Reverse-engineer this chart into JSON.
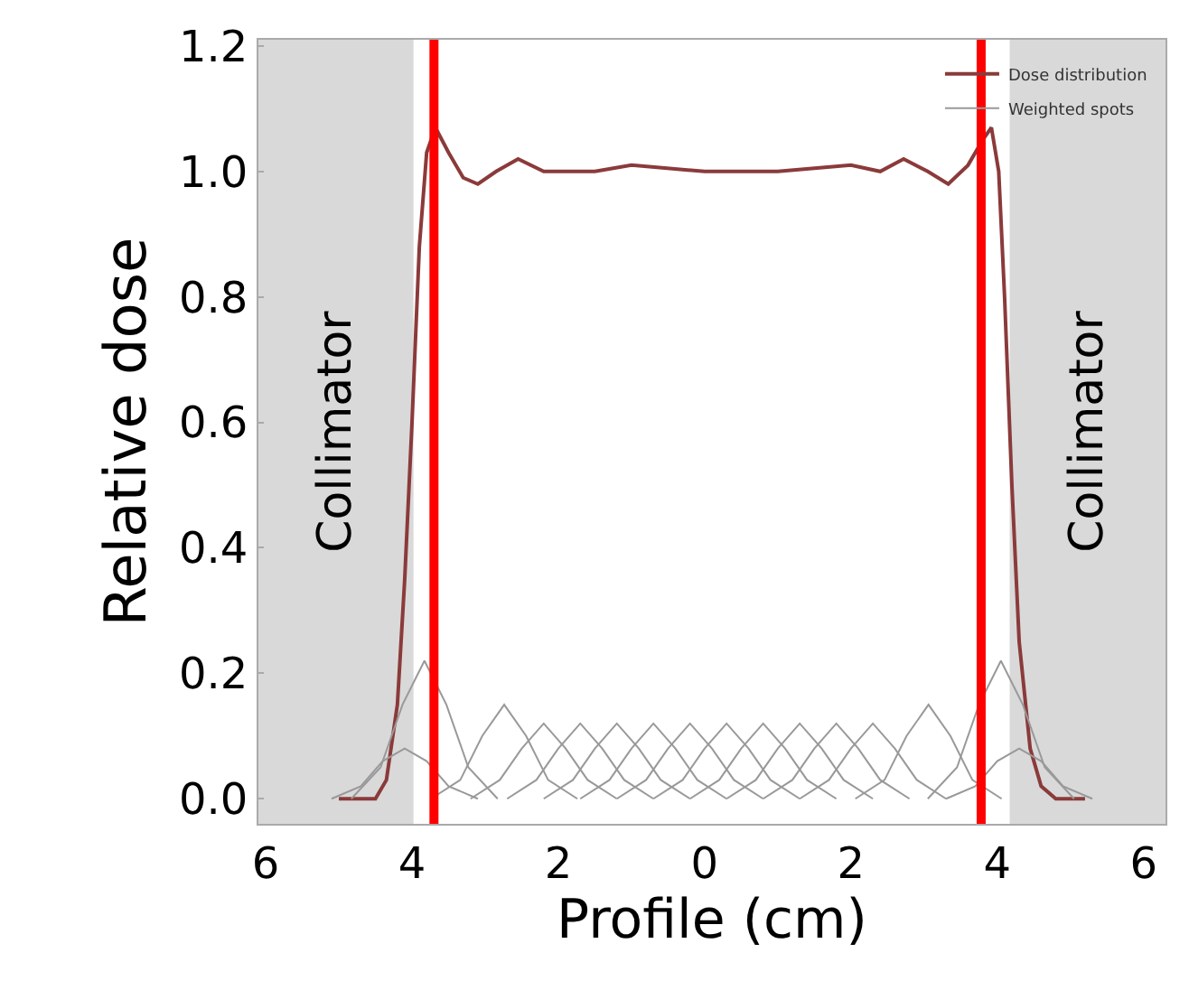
{
  "chart_data": {
    "type": "line",
    "xlabel": "Profile (cm)",
    "ylabel": "Relative dose",
    "xlim": [
      -6.1,
      6.3
    ],
    "ylim": [
      -0.04,
      1.21
    ],
    "xticks": [
      {
        "value": -6,
        "label": "6"
      },
      {
        "value": -4,
        "label": "4"
      },
      {
        "value": -2,
        "label": "2"
      },
      {
        "value": 0,
        "label": "0"
      },
      {
        "value": 2,
        "label": "2"
      },
      {
        "value": 4,
        "label": "4"
      },
      {
        "value": 6,
        "label": "6"
      }
    ],
    "yticks": [
      {
        "value": 0,
        "label": "0.0"
      },
      {
        "value": 0.2,
        "label": "0.2"
      },
      {
        "value": 0.4,
        "label": "0.4"
      },
      {
        "value": 0.6,
        "label": "0.6"
      },
      {
        "value": 0.8,
        "label": "0.8"
      },
      {
        "value": 1.0,
        "label": "1.0"
      },
      {
        "value": 1.2,
        "label": "1.2"
      }
    ],
    "grid": false,
    "legend": "top right",
    "bands": [
      {
        "axis": "x",
        "from": -6.1,
        "to": -3.98,
        "label": "Collimator",
        "color": "#d9d9d9"
      },
      {
        "axis": "x",
        "from": 4.17,
        "to": 6.3,
        "label": "Collimator",
        "color": "#d9d9d9"
      }
    ],
    "ref_lines": [
      {
        "axis": "x",
        "value": -3.7,
        "color": "#ff0000"
      },
      {
        "axis": "x",
        "value": 3.78,
        "color": "#ff0000"
      }
    ],
    "series": [
      {
        "name": "Dose distribution",
        "color": "#8b3a3a",
        "x": [
          -5.0,
          -4.5,
          -4.35,
          -4.2,
          -4.1,
          -4.0,
          -3.9,
          -3.8,
          -3.68,
          -3.5,
          -3.3,
          -3.1,
          -2.85,
          -2.55,
          -2.2,
          -1.5,
          -1.0,
          0,
          1.0,
          2.0,
          2.4,
          2.72,
          3.05,
          3.33,
          3.6,
          3.8,
          3.92,
          4.02,
          4.1,
          4.2,
          4.3,
          4.45,
          4.6,
          4.8,
          5.2
        ],
        "values": [
          0,
          0,
          0.03,
          0.15,
          0.35,
          0.6,
          0.88,
          1.03,
          1.07,
          1.03,
          0.99,
          0.98,
          1.0,
          1.02,
          1.0,
          1.0,
          1.01,
          1.0,
          1.0,
          1.01,
          1.0,
          1.02,
          1.0,
          0.98,
          1.01,
          1.05,
          1.07,
          1.0,
          0.8,
          0.5,
          0.25,
          0.08,
          0.02,
          0,
          0
        ]
      },
      {
        "name": "Weighted spots",
        "color": "#999999",
        "x": [
          -5.1,
          -4.7,
          -4.4,
          -4.1,
          -3.8,
          -3.5,
          -3.1
        ],
        "values": [
          0,
          0.02,
          0.06,
          0.08,
          0.06,
          0.02,
          0
        ]
      },
      {
        "color": "#999999",
        "x": [
          -4.83,
          -4.43,
          -4.13,
          -3.83,
          -3.53,
          -3.23,
          -2.83
        ],
        "values": [
          0,
          0.05,
          0.15,
          0.22,
          0.15,
          0.05,
          0
        ]
      },
      {
        "color": "#999999",
        "x": [
          -3.74,
          -3.34,
          -3.04,
          -2.74,
          -2.44,
          -2.14,
          -1.74
        ],
        "values": [
          0,
          0.03,
          0.1,
          0.15,
          0.1,
          0.03,
          0
        ]
      },
      {
        "color": "#999999",
        "x": [
          -3.2,
          -2.8,
          -2.5,
          -2.2,
          -1.9,
          -1.6,
          -1.2
        ],
        "values": [
          0,
          0.03,
          0.08,
          0.12,
          0.08,
          0.03,
          0
        ]
      },
      {
        "color": "#999999",
        "x": [
          -2.7,
          -2.3,
          -2.0,
          -1.7,
          -1.4,
          -1.1,
          -0.7
        ],
        "values": [
          0,
          0.03,
          0.08,
          0.12,
          0.08,
          0.03,
          0
        ]
      },
      {
        "color": "#999999",
        "x": [
          -2.2,
          -1.8,
          -1.5,
          -1.2,
          -0.9,
          -0.6,
          -0.2
        ],
        "values": [
          0,
          0.03,
          0.08,
          0.12,
          0.08,
          0.03,
          0
        ]
      },
      {
        "color": "#999999",
        "x": [
          -1.7,
          -1.3,
          -1.0,
          -0.7,
          -0.4,
          -0.1,
          0.3
        ],
        "values": [
          0,
          0.03,
          0.08,
          0.12,
          0.08,
          0.03,
          0
        ]
      },
      {
        "color": "#999999",
        "x": [
          -1.2,
          -0.8,
          -0.5,
          -0.2,
          0.1,
          0.4,
          0.8
        ],
        "values": [
          0,
          0.03,
          0.08,
          0.12,
          0.08,
          0.03,
          0
        ]
      },
      {
        "color": "#999999",
        "x": [
          -0.7,
          -0.3,
          0.0,
          0.3,
          0.6,
          0.9,
          1.3
        ],
        "values": [
          0,
          0.03,
          0.08,
          0.12,
          0.08,
          0.03,
          0
        ]
      },
      {
        "color": "#999999",
        "x": [
          -0.2,
          0.2,
          0.5,
          0.8,
          1.1,
          1.4,
          1.8
        ],
        "values": [
          0,
          0.03,
          0.08,
          0.12,
          0.08,
          0.03,
          0
        ]
      },
      {
        "color": "#999999",
        "x": [
          0.3,
          0.7,
          1.0,
          1.3,
          1.6,
          1.9,
          2.3
        ],
        "values": [
          0,
          0.03,
          0.08,
          0.12,
          0.08,
          0.03,
          0
        ]
      },
      {
        "color": "#999999",
        "x": [
          0.8,
          1.2,
          1.5,
          1.8,
          2.1,
          2.4,
          2.8
        ],
        "values": [
          0,
          0.03,
          0.08,
          0.12,
          0.08,
          0.03,
          0
        ]
      },
      {
        "color": "#999999",
        "x": [
          1.3,
          1.7,
          2.0,
          2.3,
          2.6,
          2.9,
          3.3
        ],
        "values": [
          0,
          0.03,
          0.08,
          0.12,
          0.08,
          0.03,
          0
        ]
      },
      {
        "color": "#999999",
        "x": [
          2.06,
          2.46,
          2.76,
          3.06,
          3.36,
          3.66,
          4.06
        ],
        "values": [
          0,
          0.03,
          0.1,
          0.15,
          0.1,
          0.03,
          0
        ]
      },
      {
        "color": "#999999",
        "x": [
          3.05,
          3.45,
          3.75,
          4.05,
          4.35,
          4.65,
          5.05
        ],
        "values": [
          0,
          0.05,
          0.15,
          0.22,
          0.15,
          0.05,
          0
        ]
      },
      {
        "color": "#999999",
        "x": [
          3.3,
          3.7,
          4.0,
          4.3,
          4.6,
          4.9,
          5.3
        ],
        "values": [
          0,
          0.02,
          0.06,
          0.08,
          0.06,
          0.02,
          0
        ]
      }
    ]
  }
}
